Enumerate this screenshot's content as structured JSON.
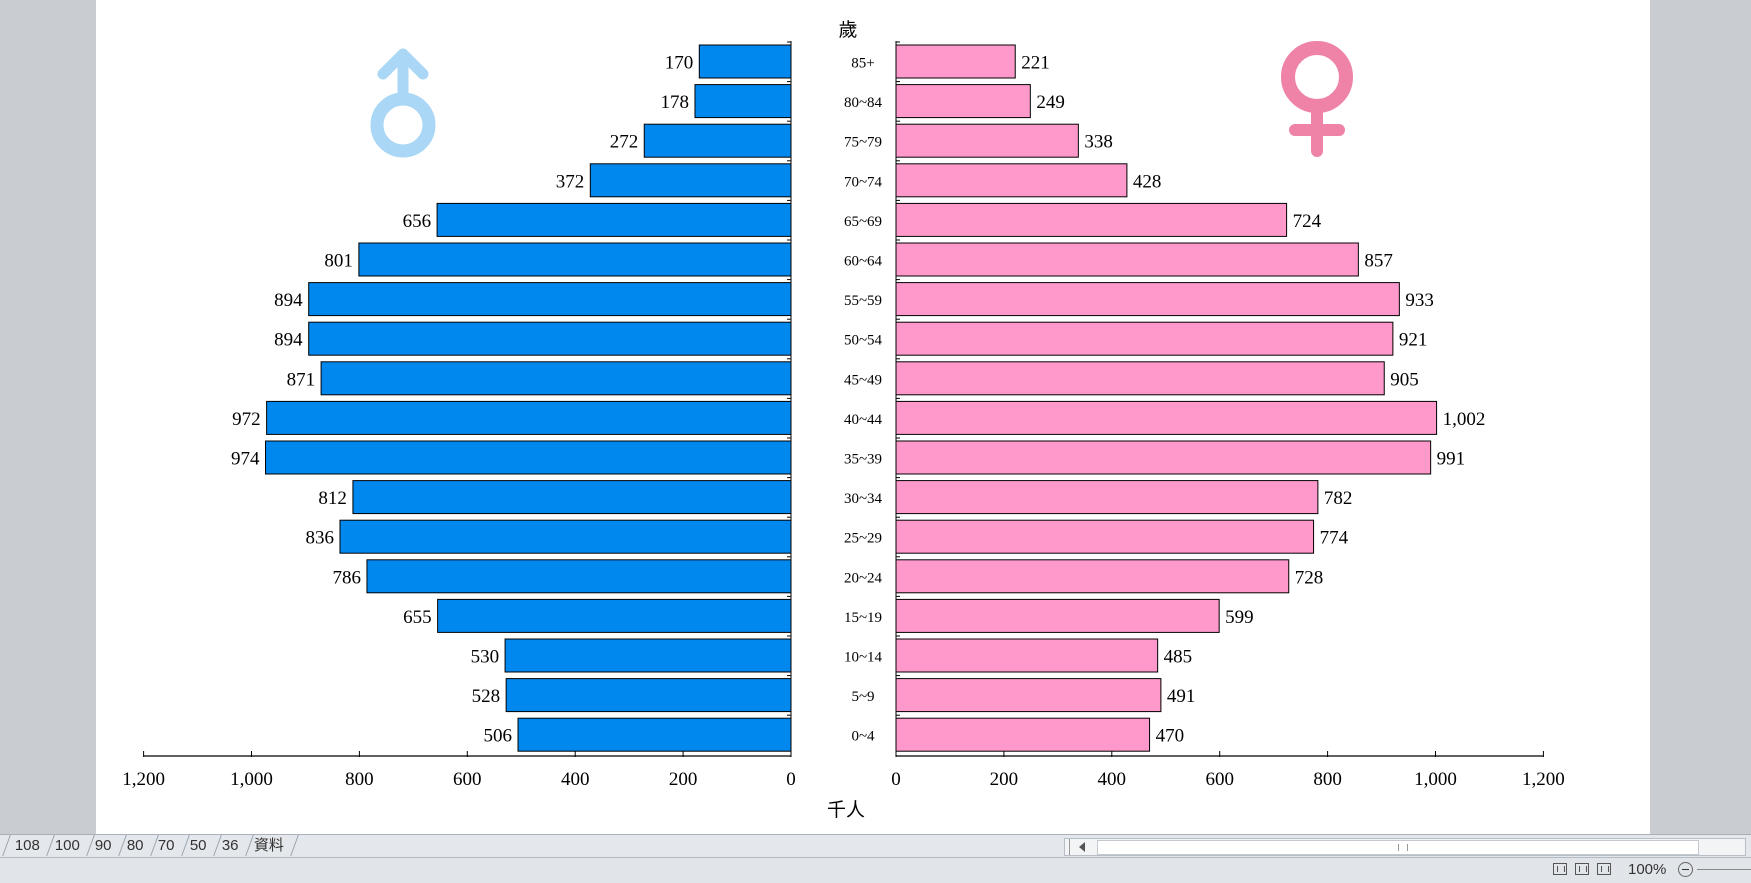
{
  "chart_data": {
    "type": "population-pyramid",
    "age_axis_label": "歲",
    "x_axis_label": "千人",
    "age_groups": [
      "85+",
      "80~84",
      "75~79",
      "70~74",
      "65~69",
      "60~64",
      "55~59",
      "50~54",
      "45~49",
      "40~44",
      "35~39",
      "30~34",
      "25~29",
      "20~24",
      "15~19",
      "10~14",
      "5~9",
      "0~4"
    ],
    "series": [
      {
        "name": "male",
        "symbol": "♂",
        "color": "#0088ee",
        "symbol_color": "#a9d7f5",
        "values": [
          170,
          178,
          272,
          372,
          656,
          801,
          894,
          894,
          871,
          972,
          974,
          812,
          836,
          786,
          655,
          530,
          528,
          506
        ],
        "labels": [
          "170",
          "178",
          "272",
          "372",
          "656",
          "801",
          "894",
          "894",
          "871",
          "972",
          "974",
          "812",
          "836",
          "786",
          "655",
          "530",
          "528",
          "506"
        ]
      },
      {
        "name": "female",
        "symbol": "♀",
        "color": "#ff99cc",
        "symbol_color": "#ee82a7",
        "values": [
          221,
          249,
          338,
          428,
          724,
          857,
          933,
          921,
          905,
          1002,
          991,
          782,
          774,
          728,
          599,
          485,
          491,
          470
        ],
        "labels": [
          "221",
          "249",
          "338",
          "428",
          "724",
          "857",
          "933",
          "921",
          "905",
          "1,002",
          "991",
          "782",
          "774",
          "728",
          "599",
          "485",
          "491",
          "470"
        ]
      }
    ],
    "xlim": [
      0,
      1200
    ],
    "ticks": [
      0,
      200,
      400,
      600,
      800,
      1000,
      1200
    ],
    "tick_labels": [
      "0",
      "200",
      "400",
      "600",
      "800",
      "1,000",
      "1,200"
    ]
  },
  "sheet_tabs": [
    "108",
    "100",
    "90",
    "80",
    "70",
    "50",
    "36",
    "資料"
  ],
  "status": {
    "zoom": "100%"
  }
}
